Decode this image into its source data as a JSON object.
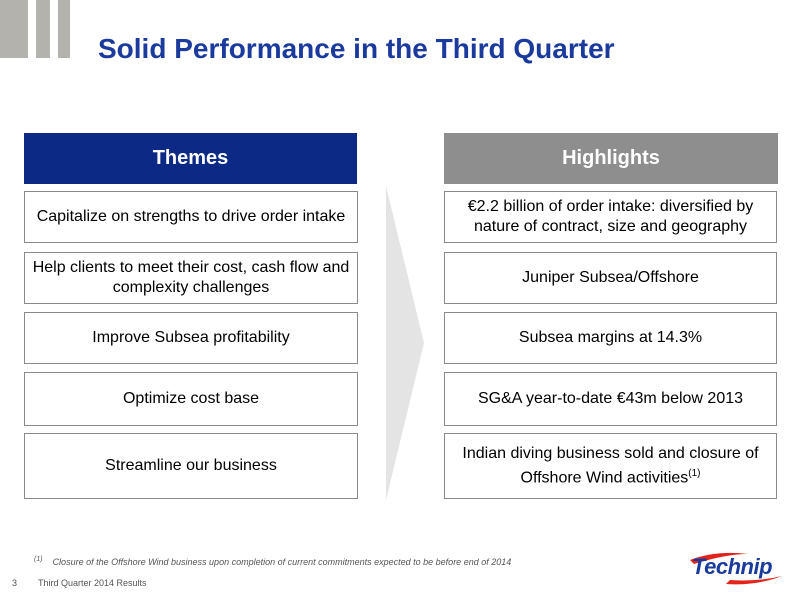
{
  "slide": {
    "title": "Solid Performance in the Third Quarter",
    "page_number": "3",
    "footer": "Third Quarter 2014 Results",
    "footnote_marker": "(1)",
    "footnote_text": "Closure of the Offshore Wind business upon  completion of current  commitments expected to be before end of 2014",
    "brand_color": "#1a3a9e",
    "accent_color": "#0c2a85"
  },
  "themes": {
    "header": "Themes",
    "items": [
      "Capitalize on strengths to drive order intake",
      "Help clients to meet their cost, cash flow and complexity challenges",
      "Improve Subsea profitability",
      "Optimize cost base",
      "Streamline our business"
    ]
  },
  "highlights": {
    "header": "Highlights",
    "items": [
      "€2.2 billion of order intake: diversified by nature of contract, size and geography",
      "Juniper Subsea/Offshore",
      "Subsea margins at 14.3%",
      "SG&A year-to-date €43m below 2013",
      "Indian diving business sold and closure of Offshore Wind activities"
    ],
    "last_item_superscript": "(1)"
  },
  "logo": {
    "text": "Technip",
    "icon": "technip-swoosh-icon"
  }
}
